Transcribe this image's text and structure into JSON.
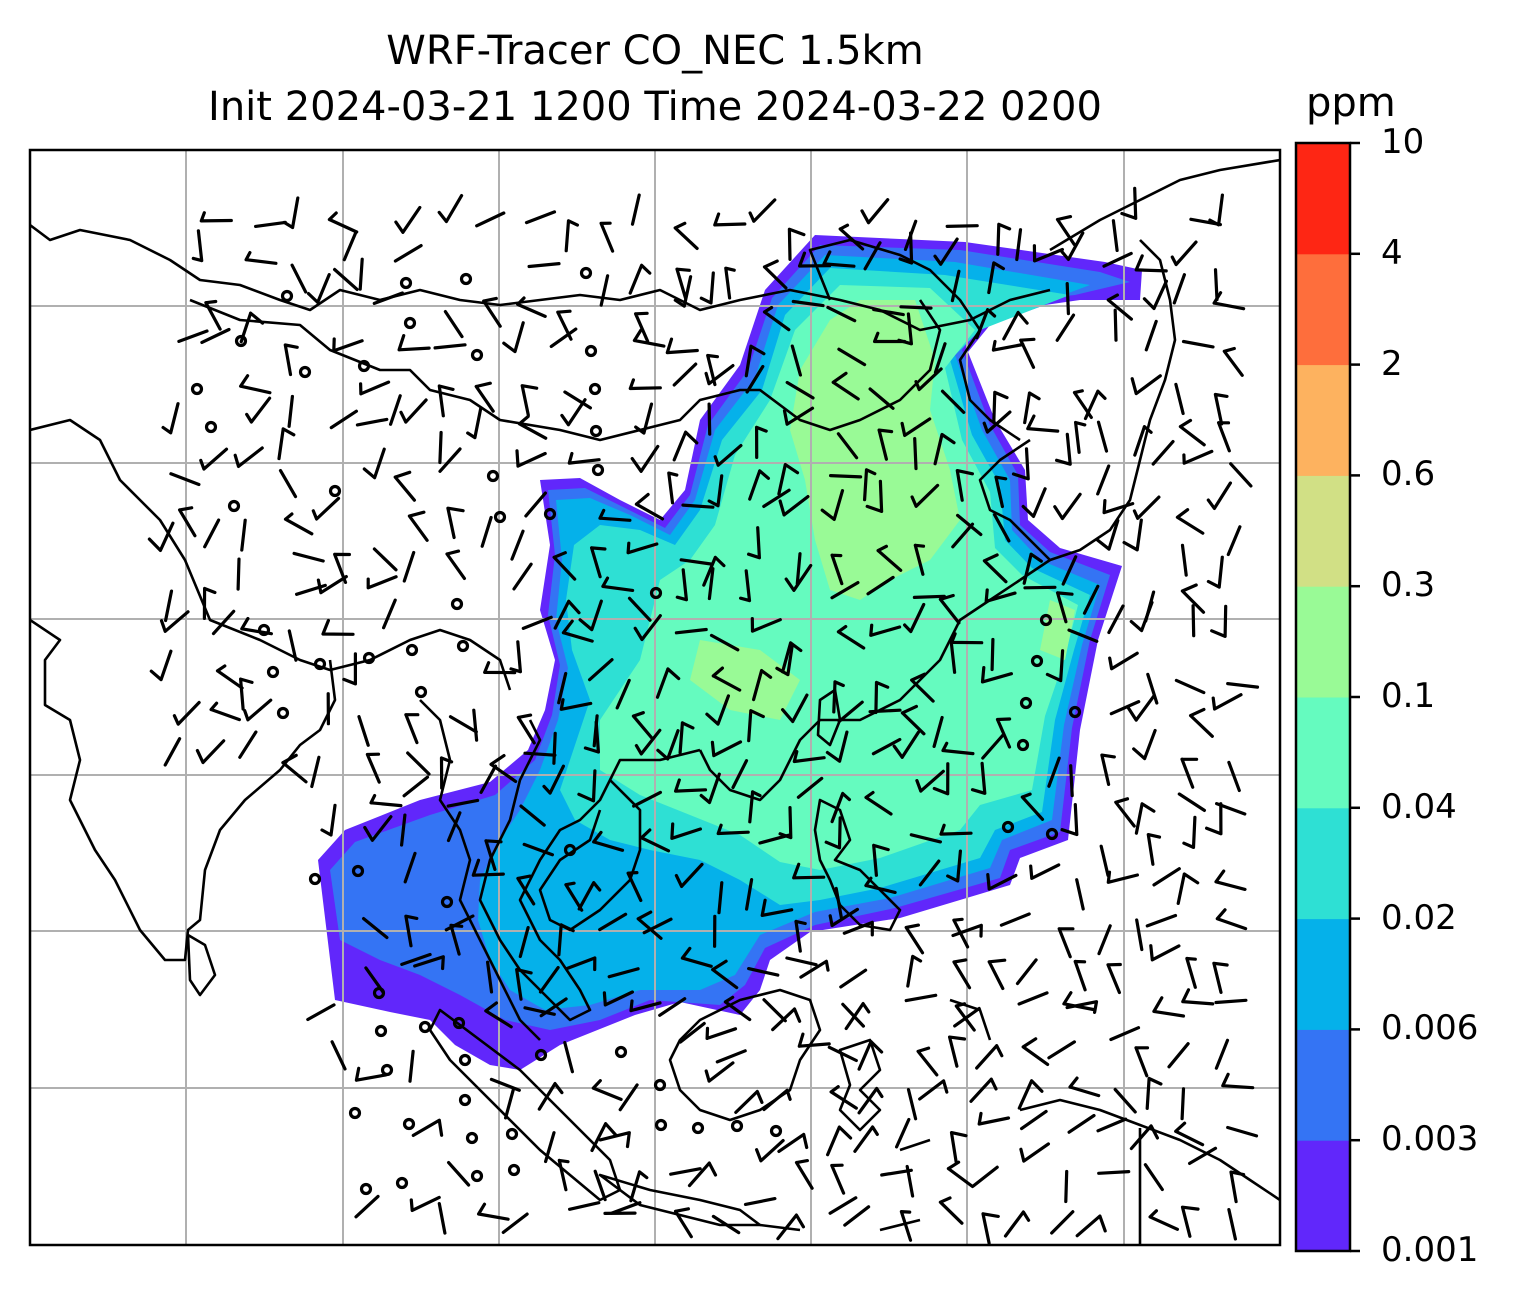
{
  "title_line1": "WRF-Tracer CO_NEC 1.5km",
  "title_line2": "Init 2024-03-21 1200 Time 2024-03-22 0200",
  "colorbar": {
    "unit": "ppm",
    "ticks": [
      "0.001",
      "0.003",
      "0.006",
      "0.02",
      "0.04",
      "0.1",
      "0.3",
      "0.6",
      "2",
      "4",
      "10"
    ],
    "colors": [
      "#6127fb",
      "#3474f4",
      "#05b1ea",
      "#2ee0d4",
      "#65fbbf",
      "#99fa96",
      "#d1e085",
      "#fdb25f",
      "#fe6e3c",
      "#fe2614"
    ]
  },
  "colors": {
    "gridline": "#b0b0b0",
    "coastline": "#000000",
    "barb": "#000000"
  }
}
